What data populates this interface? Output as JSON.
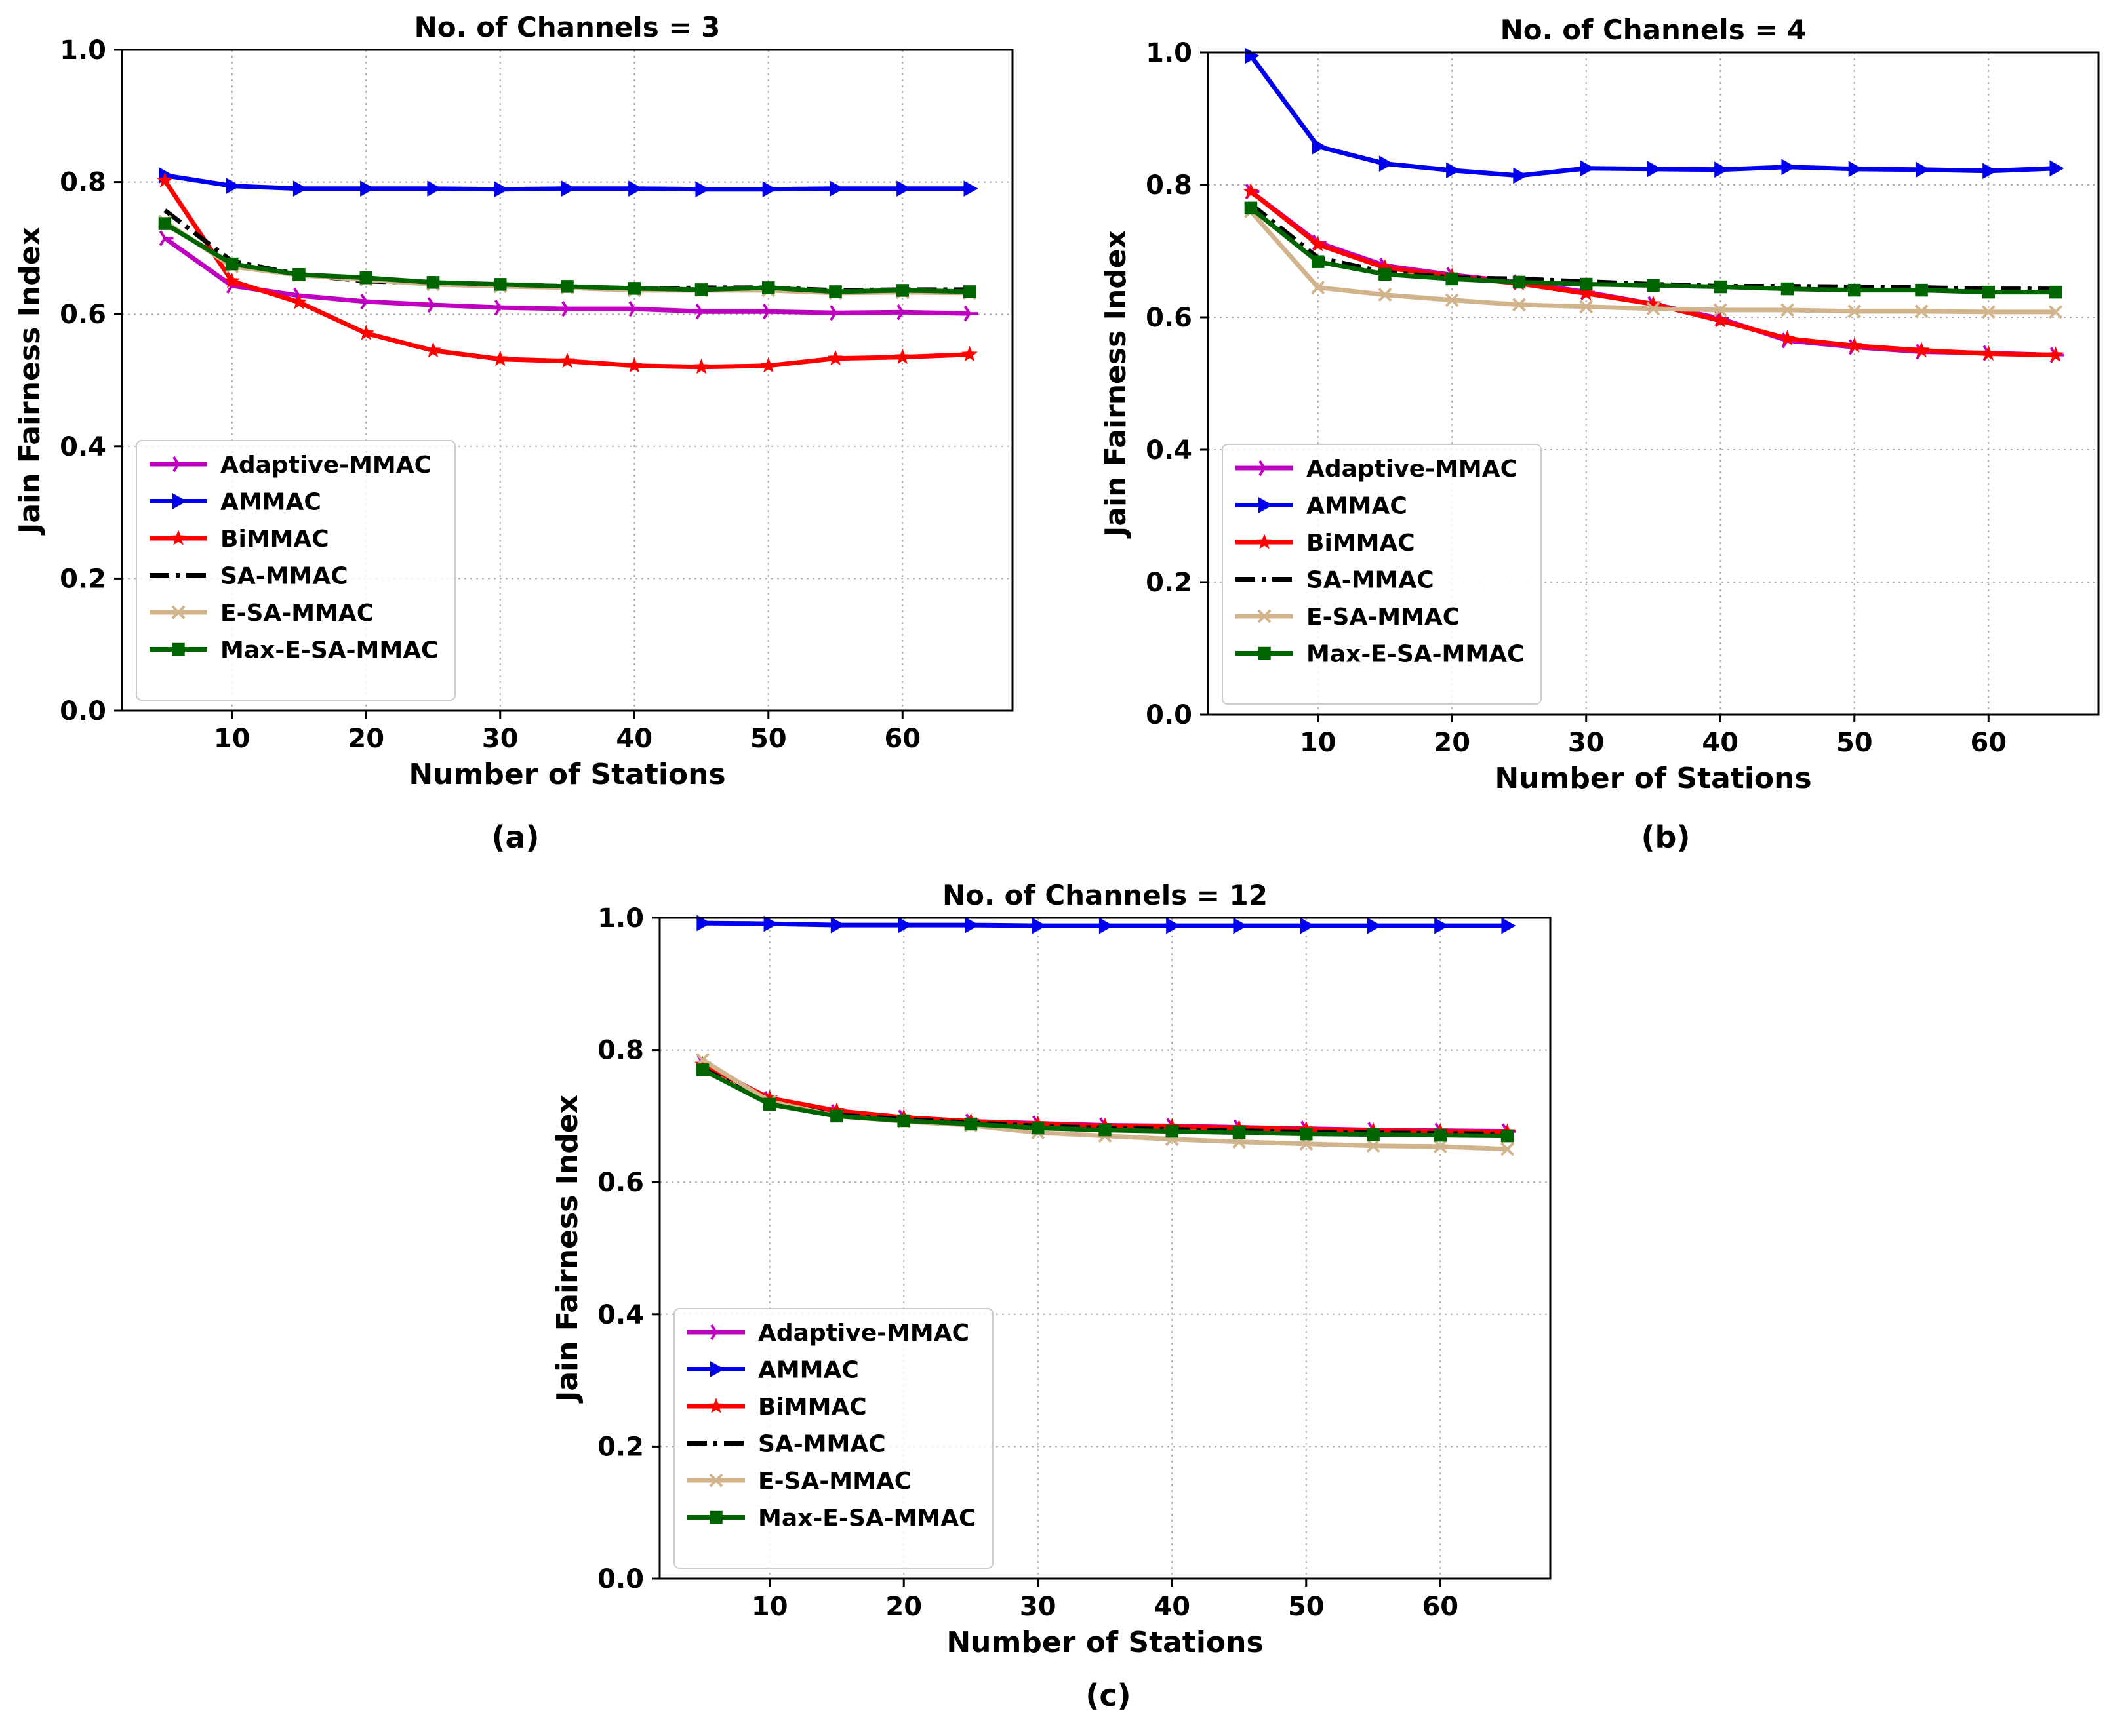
{
  "chart_data": [
    {
      "type": "line",
      "panel": "(a)",
      "title": "No. of Channels = 3",
      "xlabel": "Number of Stations",
      "ylabel": "Jain Fairness Index",
      "xlim": [
        1.8,
        68.2
      ],
      "ylim": [
        0.0,
        1.0
      ],
      "xticks": [
        10,
        20,
        30,
        40,
        50,
        60
      ],
      "yticks": [
        0.0,
        0.2,
        0.4,
        0.6,
        0.8,
        1.0
      ],
      "ytick_labels": [
        "0.0",
        "0.2",
        "0.4",
        "0.6",
        "0.8",
        "1.0"
      ],
      "grid": true,
      "legend_position": "lower-left",
      "x": [
        5,
        10,
        15,
        20,
        25,
        30,
        35,
        40,
        45,
        50,
        55,
        60,
        65
      ],
      "series": [
        {
          "name": "Adaptive-MMAC",
          "color": "#c000c0",
          "marker": "tri_right",
          "values": [
            0.715,
            0.643,
            0.628,
            0.619,
            0.614,
            0.61,
            0.608,
            0.608,
            0.604,
            0.604,
            0.602,
            0.603,
            0.601
          ]
        },
        {
          "name": "AMMAC",
          "color": "#0000ee",
          "marker": "triangle_right",
          "values": [
            0.81,
            0.794,
            0.79,
            0.79,
            0.79,
            0.789,
            0.79,
            0.79,
            0.789,
            0.789,
            0.79,
            0.79,
            0.79
          ]
        },
        {
          "name": "BiMMAC",
          "color": "#ff0000",
          "marker": "star",
          "values": [
            0.802,
            0.65,
            0.618,
            0.571,
            0.545,
            0.532,
            0.529,
            0.522,
            0.52,
            0.522,
            0.533,
            0.535,
            0.539
          ]
        },
        {
          "name": "SA-MMAC",
          "color": "#000000",
          "marker": "none",
          "values": [
            0.757,
            0.68,
            0.66,
            0.65,
            0.647,
            0.645,
            0.642,
            0.638,
            0.64,
            0.64,
            0.636,
            0.637,
            0.637
          ]
        },
        {
          "name": "E-SA-MMAC",
          "color": "#d2b48c",
          "marker": "x",
          "values": [
            0.74,
            0.672,
            0.659,
            0.652,
            0.645,
            0.642,
            0.64,
            0.636,
            0.636,
            0.636,
            0.632,
            0.633,
            0.632
          ]
        },
        {
          "name": "Max-E-SA-MMAC",
          "color": "#006400",
          "marker": "square",
          "values": [
            0.737,
            0.676,
            0.66,
            0.655,
            0.648,
            0.645,
            0.642,
            0.639,
            0.637,
            0.64,
            0.634,
            0.636,
            0.634
          ]
        }
      ]
    },
    {
      "type": "line",
      "panel": "(b)",
      "title": "No. of Channels = 4",
      "xlabel": "Number of Stations",
      "ylabel": "Jain Fairness Index",
      "xlim": [
        1.8,
        68.2
      ],
      "ylim": [
        0.0,
        1.0
      ],
      "xticks": [
        10,
        20,
        30,
        40,
        50,
        60
      ],
      "yticks": [
        0.0,
        0.2,
        0.4,
        0.6,
        0.8,
        1.0
      ],
      "ytick_labels": [
        "0.0",
        "0.2",
        "0.4",
        "0.6",
        "0.8",
        "1.0"
      ],
      "grid": true,
      "legend_position": "lower-left",
      "x": [
        5,
        10,
        15,
        20,
        25,
        30,
        35,
        40,
        45,
        50,
        55,
        60,
        65
      ],
      "series": [
        {
          "name": "Adaptive-MMAC",
          "color": "#c000c0",
          "marker": "tri_right",
          "values": [
            0.79,
            0.713,
            0.678,
            0.664,
            0.653,
            0.638,
            0.62,
            0.598,
            0.565,
            0.555,
            0.548,
            0.546,
            0.543
          ]
        },
        {
          "name": "AMMAC",
          "color": "#0000ee",
          "marker": "triangle_right",
          "values": [
            0.995,
            0.858,
            0.832,
            0.822,
            0.814,
            0.825,
            0.824,
            0.823,
            0.827,
            0.824,
            0.823,
            0.821,
            0.825
          ]
        },
        {
          "name": "BiMMAC",
          "color": "#ff0000",
          "marker": "star",
          "values": [
            0.79,
            0.71,
            0.675,
            0.662,
            0.651,
            0.636,
            0.62,
            0.595,
            0.568,
            0.557,
            0.55,
            0.545,
            0.543
          ]
        },
        {
          "name": "SA-MMAC",
          "color": "#000000",
          "marker": "none",
          "values": [
            0.771,
            0.69,
            0.668,
            0.66,
            0.658,
            0.654,
            0.65,
            0.647,
            0.647,
            0.646,
            0.645,
            0.643,
            0.643
          ]
        },
        {
          "name": "E-SA-MMAC",
          "color": "#d2b48c",
          "marker": "x",
          "values": [
            0.76,
            0.645,
            0.634,
            0.626,
            0.619,
            0.616,
            0.613,
            0.611,
            0.611,
            0.609,
            0.609,
            0.608,
            0.608
          ]
        },
        {
          "name": "Max-E-SA-MMAC",
          "color": "#006400",
          "marker": "square",
          "values": [
            0.765,
            0.684,
            0.665,
            0.658,
            0.653,
            0.65,
            0.648,
            0.646,
            0.643,
            0.641,
            0.641,
            0.638,
            0.638
          ]
        }
      ]
    },
    {
      "type": "line",
      "panel": "(c)",
      "title": "No. of Channels = 12",
      "xlabel": "Number of Stations",
      "ylabel": "Jain Fairness Index",
      "xlim": [
        1.8,
        68.2
      ],
      "ylim": [
        0.0,
        1.0
      ],
      "xticks": [
        10,
        20,
        30,
        40,
        50,
        60
      ],
      "yticks": [
        0.0,
        0.2,
        0.4,
        0.6,
        0.8,
        1.0
      ],
      "ytick_labels": [
        "0.0",
        "0.2",
        "0.4",
        "0.6",
        "0.8",
        "1.0"
      ],
      "grid": true,
      "legend_position": "lower-left",
      "x": [
        5,
        10,
        15,
        20,
        25,
        30,
        35,
        40,
        45,
        50,
        55,
        60,
        65
      ],
      "series": [
        {
          "name": "Adaptive-MMAC",
          "color": "#c000c0",
          "marker": "tri_right",
          "values": [
            0.78,
            0.726,
            0.706,
            0.698,
            0.692,
            0.689,
            0.686,
            0.685,
            0.683,
            0.681,
            0.679,
            0.678,
            0.677
          ]
        },
        {
          "name": "AMMAC",
          "color": "#0000ee",
          "marker": "triangle_right",
          "values": [
            0.992,
            0.991,
            0.989,
            0.989,
            0.989,
            0.988,
            0.988,
            0.988,
            0.988,
            0.988,
            0.988,
            0.988,
            0.988
          ]
        },
        {
          "name": "BiMMAC",
          "color": "#ff0000",
          "marker": "star",
          "values": [
            0.778,
            0.727,
            0.708,
            0.698,
            0.692,
            0.688,
            0.685,
            0.684,
            0.682,
            0.68,
            0.678,
            0.677,
            0.676
          ]
        },
        {
          "name": "SA-MMAC",
          "color": "#000000",
          "marker": "none",
          "values": [
            0.772,
            0.72,
            0.702,
            0.695,
            0.69,
            0.685,
            0.682,
            0.68,
            0.678,
            0.676,
            0.675,
            0.674,
            0.673
          ]
        },
        {
          "name": "E-SA-MMAC",
          "color": "#d2b48c",
          "marker": "x",
          "values": [
            0.785,
            0.722,
            0.7,
            0.692,
            0.686,
            0.675,
            0.67,
            0.665,
            0.661,
            0.658,
            0.655,
            0.654,
            0.65
          ]
        },
        {
          "name": "Max-E-SA-MMAC",
          "color": "#006400",
          "marker": "square",
          "values": [
            0.77,
            0.718,
            0.7,
            0.693,
            0.688,
            0.682,
            0.679,
            0.677,
            0.675,
            0.673,
            0.672,
            0.671,
            0.67
          ]
        }
      ]
    }
  ]
}
